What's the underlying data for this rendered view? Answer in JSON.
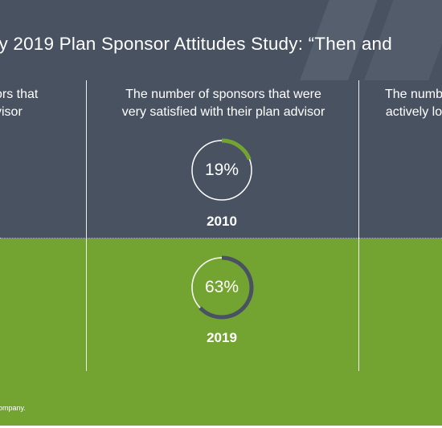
{
  "title": "ty 2019 Plan Sponsor Attitudes Study: “Then and",
  "columns": [
    {
      "header_lines": [
        "ors that",
        "visor"
      ]
    },
    {
      "header_lines": [
        "The number of sponsors that were",
        "very satisfied with their plan advisor"
      ]
    },
    {
      "header_lines": [
        "The numb",
        "actively lo"
      ]
    }
  ],
  "footnote": "ompany.",
  "colors": {
    "top_panel": "#485261",
    "bottom_panel": "#73a432",
    "ring_track": "#ffffff"
  },
  "chart_data": {
    "type": "donut",
    "metric": "The number of sponsors that were very satisfied with their plan advisor",
    "points": [
      {
        "year": "2010",
        "label": "19%",
        "value": 19,
        "arc_color": "#73a432"
      },
      {
        "year": "2019",
        "label": "63%",
        "value": 63,
        "arc_color": "#485261"
      }
    ]
  }
}
